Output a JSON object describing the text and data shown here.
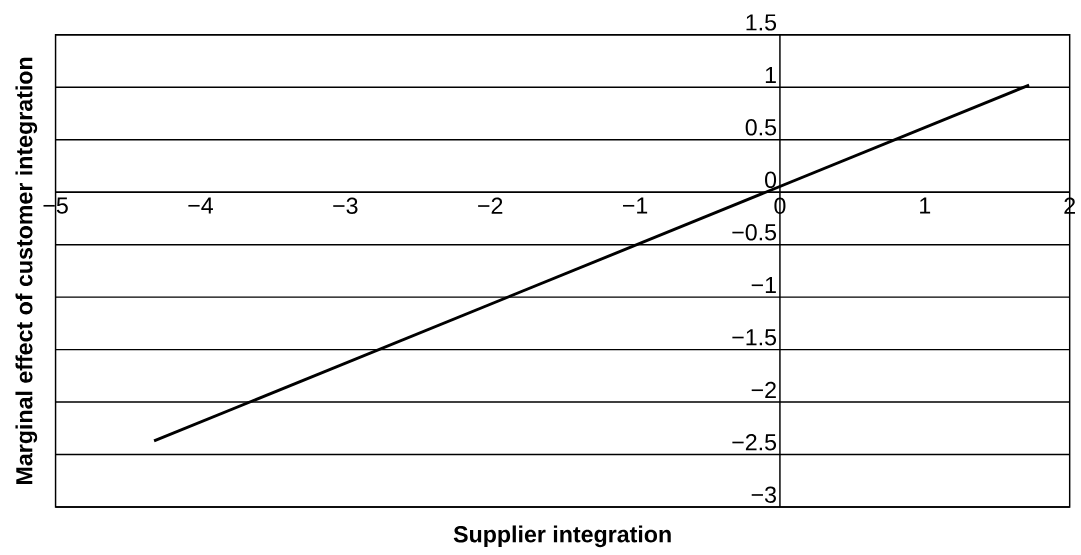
{
  "chart_data": {
    "type": "line",
    "xlabel": "Supplier integration",
    "ylabel": "Marginal effect of customer integration",
    "x": [
      -4.32,
      1.72
    ],
    "series": [
      {
        "color": "#000000",
        "values": [
          -2.37,
          1.02
        ]
      }
    ],
    "xlim": [
      -5,
      2
    ],
    "ylim": [
      -3,
      1.5
    ],
    "xticks": [
      {
        "value": -5,
        "label": "−5"
      },
      {
        "value": -4,
        "label": "−4"
      },
      {
        "value": -3,
        "label": "−3"
      },
      {
        "value": -2,
        "label": "−2"
      },
      {
        "value": -1,
        "label": "−1"
      },
      0,
      1,
      2
    ],
    "yticks": [
      {
        "value": -3,
        "label": "−3"
      },
      {
        "value": -2.5,
        "label": "−2.5"
      },
      {
        "value": -2,
        "label": "−2"
      },
      {
        "value": -1.5,
        "label": "−1.5"
      },
      {
        "value": -1,
        "label": "−1"
      },
      {
        "value": -0.5,
        "label": "−0.5"
      },
      0,
      0.5,
      1,
      1.5
    ],
    "grid": "y"
  }
}
